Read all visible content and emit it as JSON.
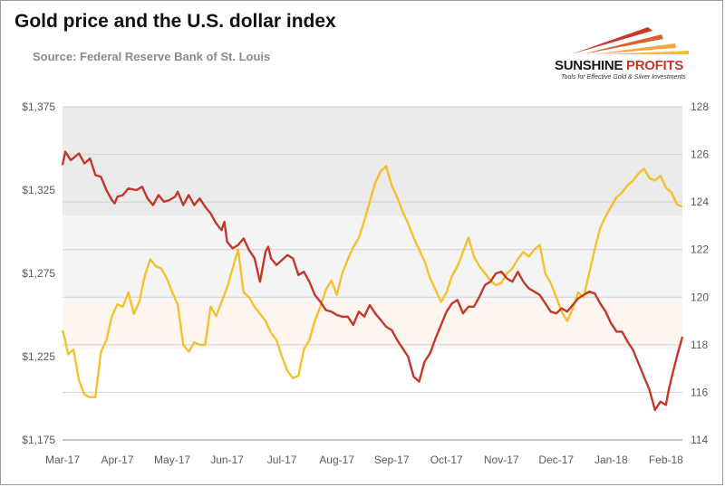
{
  "header": {
    "title": "Gold price and the U.S. dollar index",
    "source": "Source: Federal Reserve Bank of St. Louis"
  },
  "brand": {
    "name_part1": "SUNSHINE",
    "name_part2": "PROFITS",
    "tagline": "Tools for Effective Gold & Silver Investments"
  },
  "colors": {
    "gold_series": "#c0392b",
    "dollar_series": "#f5c02e",
    "band_top": "#ebebeb",
    "band_mid": "#f4f4f4",
    "band_low": "#fdf6f0"
  },
  "chart_data": {
    "type": "line",
    "title": "Gold price and the U.S. dollar index",
    "x_ticks": [
      "Mar-17",
      "Apr-17",
      "May-17",
      "Jun-17",
      "Jul-17",
      "Aug-17",
      "Sep-17",
      "Oct-17",
      "Nov-17",
      "Dec-17",
      "Jan-18",
      "Feb-18"
    ],
    "y_left_ticks": [
      "$1,175",
      "$1,225",
      "$1,275",
      "$1,325",
      "$1,375"
    ],
    "y_right_ticks": [
      "114",
      "116",
      "118",
      "120",
      "122",
      "124",
      "126",
      "128"
    ],
    "y_left_range": [
      1175,
      1375
    ],
    "y_right_range": [
      114,
      128
    ],
    "x_range": [
      0,
      11.3
    ],
    "grid": true,
    "series": [
      {
        "axis": "left",
        "points": [
          [
            0.0,
            1340
          ],
          [
            0.05,
            1348
          ],
          [
            0.15,
            1343
          ],
          [
            0.3,
            1347
          ],
          [
            0.4,
            1341
          ],
          [
            0.5,
            1344
          ],
          [
            0.6,
            1334
          ],
          [
            0.7,
            1333
          ],
          [
            0.8,
            1325
          ],
          [
            0.9,
            1319
          ],
          [
            0.95,
            1317
          ],
          [
            1.0,
            1321
          ],
          [
            1.1,
            1322
          ],
          [
            1.2,
            1326
          ],
          [
            1.35,
            1325
          ],
          [
            1.45,
            1327
          ],
          [
            1.55,
            1320
          ],
          [
            1.65,
            1316
          ],
          [
            1.75,
            1322
          ],
          [
            1.85,
            1318
          ],
          [
            1.95,
            1319
          ],
          [
            2.05,
            1321
          ],
          [
            2.1,
            1324
          ],
          [
            2.2,
            1316
          ],
          [
            2.3,
            1322
          ],
          [
            2.4,
            1316
          ],
          [
            2.5,
            1320
          ],
          [
            2.6,
            1315
          ],
          [
            2.7,
            1311
          ],
          [
            2.8,
            1305
          ],
          [
            2.9,
            1301
          ],
          [
            2.95,
            1306
          ],
          [
            3.0,
            1294
          ],
          [
            3.1,
            1290
          ],
          [
            3.2,
            1292
          ],
          [
            3.3,
            1296
          ],
          [
            3.4,
            1289
          ],
          [
            3.5,
            1284
          ],
          [
            3.6,
            1270
          ],
          [
            3.7,
            1288
          ],
          [
            3.75,
            1291
          ],
          [
            3.8,
            1284
          ],
          [
            3.9,
            1280
          ],
          [
            4.0,
            1283
          ],
          [
            4.1,
            1286
          ],
          [
            4.2,
            1284
          ],
          [
            4.3,
            1274
          ],
          [
            4.4,
            1276
          ],
          [
            4.5,
            1270
          ],
          [
            4.6,
            1262
          ],
          [
            4.7,
            1258
          ],
          [
            4.8,
            1253
          ],
          [
            4.9,
            1252
          ],
          [
            5.0,
            1250
          ],
          [
            5.1,
            1249
          ],
          [
            5.2,
            1249
          ],
          [
            5.3,
            1244
          ],
          [
            5.4,
            1252
          ],
          [
            5.5,
            1249
          ],
          [
            5.6,
            1256
          ],
          [
            5.7,
            1251
          ],
          [
            5.8,
            1247
          ],
          [
            5.9,
            1243
          ],
          [
            6.0,
            1241
          ],
          [
            6.1,
            1235
          ],
          [
            6.2,
            1230
          ],
          [
            6.3,
            1225
          ],
          [
            6.4,
            1213
          ],
          [
            6.5,
            1210
          ],
          [
            6.6,
            1222
          ],
          [
            6.7,
            1227
          ],
          [
            6.8,
            1236
          ],
          [
            6.9,
            1244
          ],
          [
            7.0,
            1252
          ],
          [
            7.1,
            1257
          ],
          [
            7.2,
            1259
          ],
          [
            7.3,
            1251
          ],
          [
            7.4,
            1255
          ],
          [
            7.5,
            1255
          ],
          [
            7.6,
            1261
          ],
          [
            7.7,
            1268
          ],
          [
            7.8,
            1270
          ],
          [
            7.9,
            1275
          ],
          [
            8.0,
            1276
          ],
          [
            8.1,
            1272
          ],
          [
            8.2,
            1270
          ],
          [
            8.3,
            1276
          ],
          [
            8.4,
            1270
          ],
          [
            8.5,
            1266
          ],
          [
            8.6,
            1264
          ],
          [
            8.7,
            1262
          ],
          [
            8.8,
            1257
          ],
          [
            8.9,
            1252
          ],
          [
            9.0,
            1251
          ],
          [
            9.1,
            1254
          ],
          [
            9.2,
            1252
          ],
          [
            9.3,
            1256
          ],
          [
            9.4,
            1260
          ],
          [
            9.5,
            1262
          ],
          [
            9.6,
            1264
          ],
          [
            9.7,
            1263
          ],
          [
            9.8,
            1257
          ],
          [
            9.9,
            1252
          ],
          [
            10.0,
            1245
          ],
          [
            10.1,
            1240
          ],
          [
            10.2,
            1240
          ],
          [
            10.3,
            1234
          ],
          [
            10.4,
            1229
          ],
          [
            10.5,
            1221
          ],
          [
            10.6,
            1213
          ],
          [
            10.7,
            1205
          ],
          [
            10.8,
            1193
          ],
          [
            10.9,
            1198
          ],
          [
            11.0,
            1196
          ],
          [
            11.05,
            1205
          ],
          [
            11.1,
            1212
          ],
          [
            11.2,
            1225
          ],
          [
            11.3,
            1237
          ]
        ]
      },
      {
        "axis": "right",
        "points": [
          [
            0.0,
            118.6
          ],
          [
            0.05,
            118.2
          ],
          [
            0.1,
            117.6
          ],
          [
            0.2,
            117.8
          ],
          [
            0.3,
            116.5
          ],
          [
            0.4,
            115.9
          ],
          [
            0.5,
            115.8
          ],
          [
            0.6,
            115.8
          ],
          [
            0.7,
            117.7
          ],
          [
            0.8,
            118.2
          ],
          [
            0.9,
            119.2
          ],
          [
            1.0,
            119.7
          ],
          [
            1.1,
            119.6
          ],
          [
            1.2,
            120.2
          ],
          [
            1.3,
            119.3
          ],
          [
            1.4,
            119.8
          ],
          [
            1.5,
            120.9
          ],
          [
            1.6,
            121.6
          ],
          [
            1.7,
            121.3
          ],
          [
            1.8,
            121.2
          ],
          [
            1.9,
            120.8
          ],
          [
            2.0,
            120.2
          ],
          [
            2.1,
            119.7
          ],
          [
            2.2,
            118.0
          ],
          [
            2.3,
            117.7
          ],
          [
            2.4,
            118.1
          ],
          [
            2.5,
            118.0
          ],
          [
            2.6,
            118.0
          ],
          [
            2.7,
            119.6
          ],
          [
            2.8,
            119.2
          ],
          [
            2.9,
            119.8
          ],
          [
            3.0,
            120.4
          ],
          [
            3.1,
            121.2
          ],
          [
            3.2,
            122.0
          ],
          [
            3.3,
            120.2
          ],
          [
            3.4,
            120.0
          ],
          [
            3.5,
            119.6
          ],
          [
            3.6,
            119.3
          ],
          [
            3.7,
            119.0
          ],
          [
            3.8,
            118.5
          ],
          [
            3.9,
            118.2
          ],
          [
            4.0,
            117.5
          ],
          [
            4.1,
            116.9
          ],
          [
            4.2,
            116.6
          ],
          [
            4.3,
            116.7
          ],
          [
            4.4,
            117.8
          ],
          [
            4.5,
            118.2
          ],
          [
            4.6,
            119.0
          ],
          [
            4.7,
            119.6
          ],
          [
            4.8,
            120.3
          ],
          [
            4.9,
            120.7
          ],
          [
            5.0,
            120.1
          ],
          [
            5.1,
            121.0
          ],
          [
            5.2,
            121.6
          ],
          [
            5.3,
            122.1
          ],
          [
            5.4,
            122.5
          ],
          [
            5.5,
            123.2
          ],
          [
            5.6,
            124.0
          ],
          [
            5.7,
            124.8
          ],
          [
            5.8,
            125.3
          ],
          [
            5.9,
            125.5
          ],
          [
            6.0,
            124.7
          ],
          [
            6.1,
            124.2
          ],
          [
            6.2,
            123.6
          ],
          [
            6.3,
            123.1
          ],
          [
            6.4,
            122.5
          ],
          [
            6.5,
            122.0
          ],
          [
            6.6,
            121.5
          ],
          [
            6.7,
            120.8
          ],
          [
            6.8,
            120.3
          ],
          [
            6.9,
            119.8
          ],
          [
            7.0,
            120.2
          ],
          [
            7.1,
            120.9
          ],
          [
            7.2,
            121.3
          ],
          [
            7.3,
            121.9
          ],
          [
            7.4,
            122.5
          ],
          [
            7.5,
            121.7
          ],
          [
            7.6,
            121.3
          ],
          [
            7.7,
            121.0
          ],
          [
            7.8,
            120.7
          ],
          [
            7.9,
            120.5
          ],
          [
            8.0,
            120.6
          ],
          [
            8.1,
            121.0
          ],
          [
            8.2,
            121.2
          ],
          [
            8.3,
            121.6
          ],
          [
            8.4,
            121.9
          ],
          [
            8.5,
            121.7
          ],
          [
            8.6,
            122.0
          ],
          [
            8.7,
            122.2
          ],
          [
            8.8,
            121.0
          ],
          [
            8.9,
            120.6
          ],
          [
            9.0,
            120.0
          ],
          [
            9.1,
            119.4
          ],
          [
            9.2,
            119.0
          ],
          [
            9.3,
            119.5
          ],
          [
            9.4,
            120.2
          ],
          [
            9.5,
            120.0
          ],
          [
            9.6,
            121.0
          ],
          [
            9.7,
            122.0
          ],
          [
            9.8,
            122.9
          ],
          [
            9.9,
            123.4
          ],
          [
            10.0,
            123.8
          ],
          [
            10.1,
            124.2
          ],
          [
            10.2,
            124.4
          ],
          [
            10.3,
            124.7
          ],
          [
            10.4,
            124.9
          ],
          [
            10.5,
            125.2
          ],
          [
            10.6,
            125.4
          ],
          [
            10.7,
            125.0
          ],
          [
            10.8,
            124.9
          ],
          [
            10.9,
            125.1
          ],
          [
            11.0,
            124.6
          ],
          [
            11.1,
            124.4
          ],
          [
            11.2,
            123.9
          ],
          [
            11.3,
            123.8
          ]
        ]
      }
    ]
  }
}
